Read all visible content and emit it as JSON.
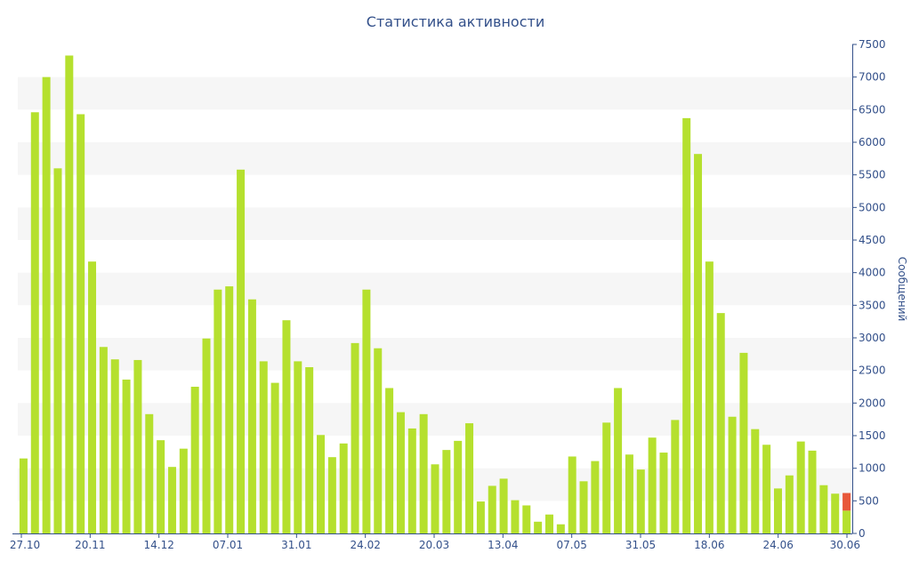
{
  "chart_data": {
    "type": "bar",
    "title": "Статистика активности",
    "xlabel": "",
    "ylabel": "Сообщений",
    "ylim": [
      0,
      7500
    ],
    "y_ticks": [
      "0",
      "500",
      "1000",
      "1500",
      "2000",
      "2500",
      "3000",
      "3500",
      "4000",
      "4500",
      "5000",
      "5500",
      "6000",
      "6500",
      "7000",
      "7500"
    ],
    "y_axis_position": "right",
    "grid": "alternating horizontal bands",
    "x_tick_labels": [
      "27.10",
      "20.11",
      "14.12",
      "07.01",
      "31.01",
      "24.02",
      "20.03",
      "13.04",
      "07.05",
      "31.05",
      "18.06",
      "24.06",
      "30.06"
    ],
    "series": [
      {
        "color": "#b5e02e",
        "values": [
          1150,
          6460,
          7000,
          5600,
          7330,
          6430,
          4170,
          2860,
          2670,
          2360,
          2660,
          1830,
          1430,
          1020,
          1300,
          2250,
          2990,
          3740,
          3790,
          5580,
          3590,
          2640,
          2310,
          3270,
          2640,
          2550,
          1510,
          1170,
          1380,
          2920,
          3740,
          2840,
          2230,
          1860,
          1610,
          1830,
          1060,
          1280,
          1420,
          1690,
          490,
          730,
          840,
          510,
          430,
          180,
          290,
          140,
          1180,
          800,
          1110,
          1700,
          2230,
          1210,
          980,
          1470,
          1240,
          1740,
          6370,
          5820,
          4170,
          3380,
          1790,
          2770,
          1600,
          1360,
          690,
          890,
          1410,
          1270,
          740,
          610,
          350
        ]
      },
      {
        "color": "#e8573a",
        "values": [
          0,
          0,
          0,
          0,
          0,
          0,
          0,
          0,
          0,
          0,
          0,
          0,
          0,
          0,
          0,
          0,
          0,
          0,
          0,
          0,
          0,
          0,
          0,
          0,
          0,
          0,
          0,
          0,
          0,
          0,
          0,
          0,
          0,
          0,
          0,
          0,
          0,
          0,
          0,
          0,
          0,
          0,
          0,
          0,
          0,
          0,
          0,
          0,
          0,
          0,
          0,
          0,
          0,
          0,
          0,
          0,
          0,
          0,
          0,
          0,
          0,
          0,
          0,
          0,
          0,
          0,
          0,
          0,
          0,
          0,
          0,
          0,
          270
        ]
      }
    ]
  }
}
